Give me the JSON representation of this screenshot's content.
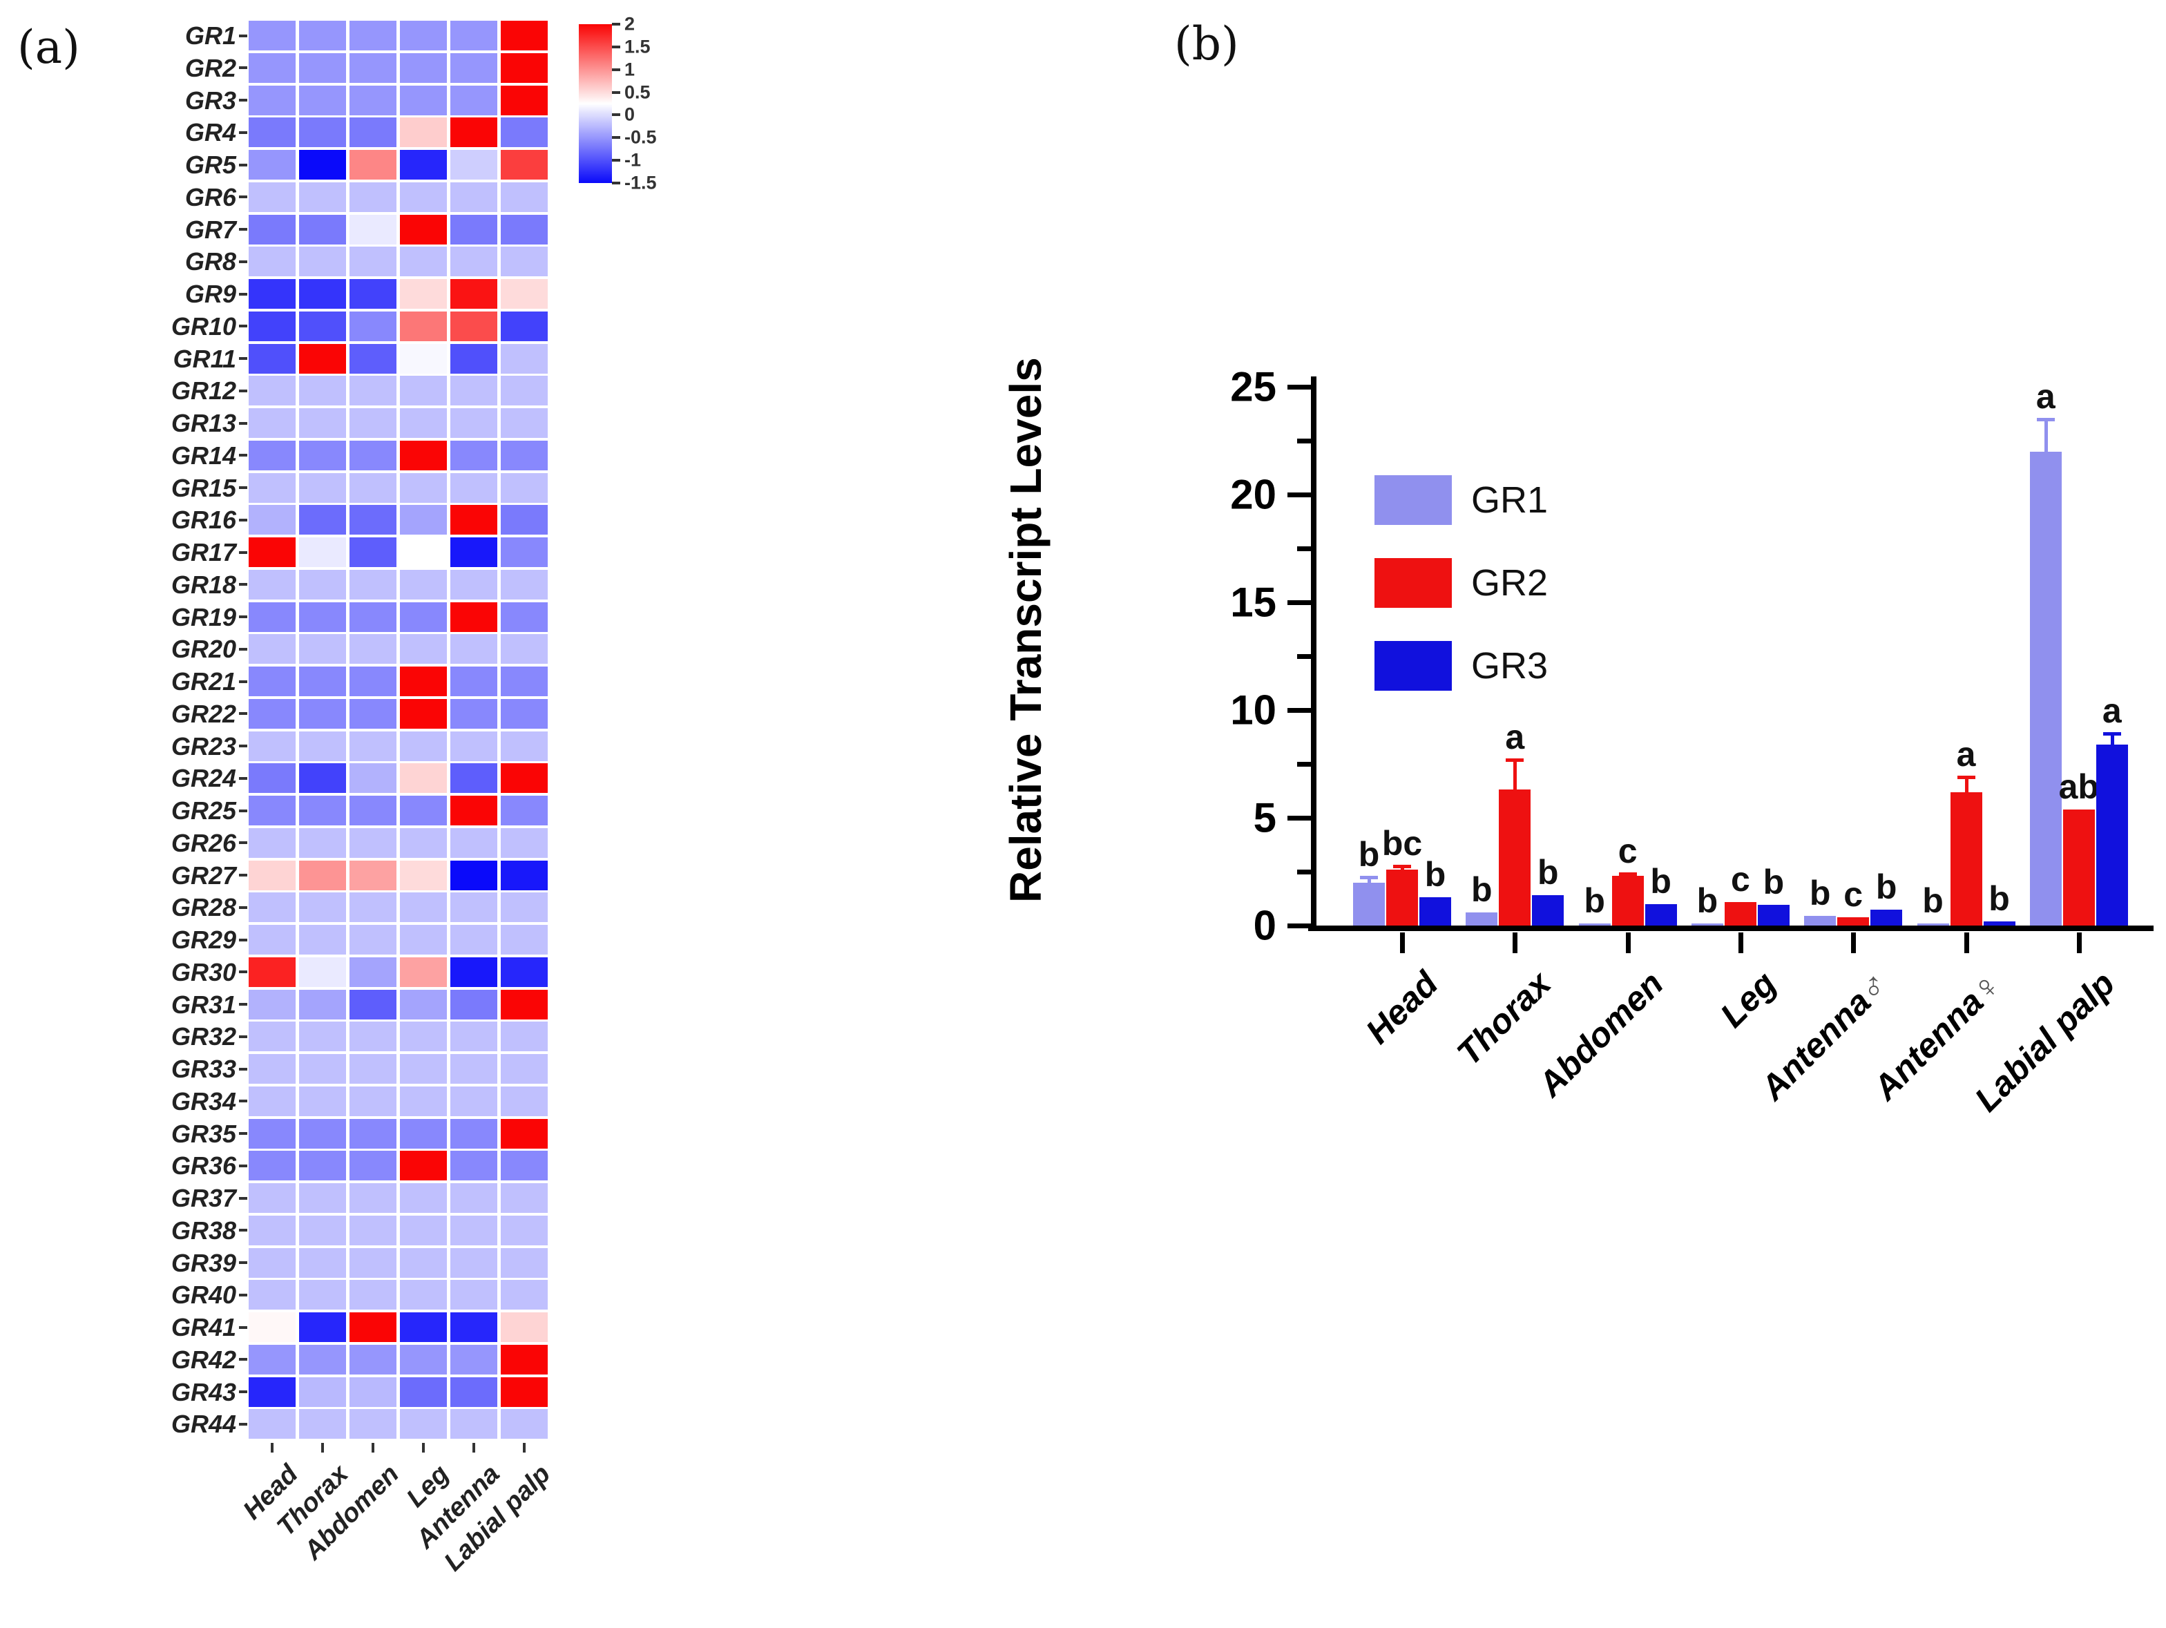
{
  "panels": {
    "a_label": "(a)",
    "b_label": "(b)"
  },
  "chart_data": [
    {
      "type": "heatmap",
      "panel": "(a)",
      "rows": [
        "GR1",
        "GR2",
        "GR3",
        "GR4",
        "GR5",
        "GR6",
        "GR7",
        "GR8",
        "GR9",
        "GR10",
        "GR11",
        "GR12",
        "GR13",
        "GR14",
        "GR15",
        "GR16",
        "GR17",
        "GR18",
        "GR19",
        "GR20",
        "GR21",
        "GR22",
        "GR23",
        "GR24",
        "GR25",
        "GR26",
        "GR27",
        "GR28",
        "GR29",
        "GR30",
        "GR31",
        "GR32",
        "GR33",
        "GR34",
        "GR35",
        "GR36",
        "GR37",
        "GR38",
        "GR39",
        "GR40",
        "GR41",
        "GR42",
        "GR43",
        "GR44"
      ],
      "columns": [
        "Head",
        "Thorax",
        "Abdomen",
        "Leg",
        "Antenna",
        "Labial palp"
      ],
      "values": [
        [
          -0.5,
          -0.5,
          -0.5,
          -0.5,
          -0.5,
          2
        ],
        [
          -0.5,
          -0.5,
          -0.5,
          -0.5,
          -0.5,
          2
        ],
        [
          -0.5,
          -0.5,
          -0.5,
          -0.5,
          -0.5,
          2
        ],
        [
          -0.7,
          -0.7,
          -0.7,
          0.6,
          2,
          -0.7
        ],
        [
          -0.5,
          -1.5,
          1.1,
          -1.3,
          -0.1,
          1.6
        ],
        [
          -0.2,
          -0.2,
          -0.2,
          -0.2,
          -0.2,
          -0.2
        ],
        [
          -0.7,
          -0.7,
          0.1,
          2,
          -0.7,
          -0.7
        ],
        [
          -0.2,
          -0.2,
          -0.2,
          -0.2,
          -0.2,
          -0.2
        ],
        [
          -1.2,
          -1.2,
          -1.1,
          0.5,
          1.9,
          0.5
        ],
        [
          -1.1,
          -1.0,
          -0.6,
          1.2,
          1.5,
          -1.1
        ],
        [
          -1.0,
          2,
          -0.9,
          0.2,
          -1.0,
          -0.2
        ],
        [
          -0.2,
          -0.2,
          -0.2,
          -0.2,
          -0.2,
          -0.2
        ],
        [
          -0.2,
          -0.2,
          -0.2,
          -0.2,
          -0.2,
          -0.2
        ],
        [
          -0.6,
          -0.6,
          -0.6,
          2,
          -0.6,
          -0.6
        ],
        [
          -0.2,
          -0.2,
          -0.2,
          -0.2,
          -0.2,
          -0.2
        ],
        [
          -0.3,
          -0.8,
          -0.8,
          -0.4,
          2,
          -0.7
        ],
        [
          2,
          0.1,
          -0.9,
          0.25,
          -1.4,
          -0.6
        ],
        [
          -0.2,
          -0.2,
          -0.2,
          -0.2,
          -0.2,
          -0.2
        ],
        [
          -0.6,
          -0.6,
          -0.6,
          -0.6,
          2,
          -0.6
        ],
        [
          -0.2,
          -0.2,
          -0.2,
          -0.2,
          -0.2,
          -0.2
        ],
        [
          -0.6,
          -0.6,
          -0.6,
          2,
          -0.6,
          -0.6
        ],
        [
          -0.6,
          -0.6,
          -0.6,
          2,
          -0.6,
          -0.6
        ],
        [
          -0.2,
          -0.2,
          -0.2,
          -0.2,
          -0.2,
          -0.2
        ],
        [
          -0.7,
          -1.1,
          -0.3,
          0.55,
          -0.9,
          2
        ],
        [
          -0.6,
          -0.6,
          -0.6,
          -0.6,
          2,
          -0.6
        ],
        [
          -0.2,
          -0.2,
          -0.2,
          -0.2,
          -0.2,
          -0.2
        ],
        [
          0.55,
          1.0,
          0.9,
          0.5,
          -1.5,
          -1.4
        ],
        [
          -0.2,
          -0.2,
          -0.2,
          -0.2,
          -0.2,
          -0.2
        ],
        [
          -0.2,
          -0.2,
          -0.2,
          -0.2,
          -0.2,
          -0.2
        ],
        [
          1.8,
          0.1,
          -0.4,
          0.9,
          -1.4,
          -1.3
        ],
        [
          -0.3,
          -0.4,
          -0.9,
          -0.4,
          -0.7,
          2
        ],
        [
          -0.2,
          -0.2,
          -0.2,
          -0.2,
          -0.2,
          -0.2
        ],
        [
          -0.2,
          -0.2,
          -0.2,
          -0.2,
          -0.2,
          -0.2
        ],
        [
          -0.2,
          -0.2,
          -0.2,
          -0.2,
          -0.2,
          -0.2
        ],
        [
          -0.6,
          -0.6,
          -0.6,
          -0.6,
          -0.6,
          2
        ],
        [
          -0.6,
          -0.6,
          -0.6,
          2,
          -0.6,
          -0.6
        ],
        [
          -0.2,
          -0.2,
          -0.2,
          -0.2,
          -0.2,
          -0.2
        ],
        [
          -0.2,
          -0.2,
          -0.2,
          -0.2,
          -0.2,
          -0.2
        ],
        [
          -0.2,
          -0.2,
          -0.2,
          -0.2,
          -0.2,
          -0.2
        ],
        [
          -0.2,
          -0.2,
          -0.2,
          -0.2,
          -0.2,
          -0.2
        ],
        [
          0.3,
          -1.3,
          2,
          -1.3,
          -1.3,
          0.55
        ],
        [
          -0.5,
          -0.5,
          -0.5,
          -0.5,
          -0.5,
          2
        ],
        [
          -1.3,
          -0.25,
          -0.25,
          -0.8,
          -0.8,
          2
        ],
        [
          -0.2,
          -0.2,
          -0.2,
          -0.2,
          -0.2,
          -0.2
        ]
      ],
      "colorscale": {
        "min": -1.5,
        "max": 2,
        "white_at": 0.25,
        "red": "#fa0505",
        "blue": "#0a0afa",
        "white": "#ffffff",
        "ticks": [
          "2",
          "1.5",
          "1",
          "0.5",
          "0",
          "-0.5",
          "-1",
          "-1.5"
        ]
      },
      "legend_position": "top-right"
    },
    {
      "type": "bar",
      "panel": "(b)",
      "categories": [
        "Head",
        "Thorax",
        "Abdomen",
        "Leg",
        "Antenna ♂",
        "Antenna ♀",
        "Labial palp"
      ],
      "series": [
        {
          "name": "GR1",
          "color": "#9090ee",
          "values": [
            2.0,
            0.6,
            0.1,
            0.1,
            0.45,
            0.1,
            22.0
          ],
          "errors": [
            0.25,
            0,
            0,
            0,
            0,
            0,
            1.5
          ],
          "letters": [
            "b",
            "b",
            "b",
            "b",
            "b",
            "b",
            "a"
          ]
        },
        {
          "name": "GR2",
          "color": "#ee1111",
          "values": [
            2.6,
            6.3,
            2.3,
            1.1,
            0.4,
            6.2,
            5.4
          ],
          "errors": [
            0.15,
            1.4,
            0.1,
            0,
            0,
            0.7,
            0
          ],
          "letters": [
            "bc",
            "a",
            "c",
            "c",
            "c",
            "a",
            "ab"
          ]
        },
        {
          "name": "GR3",
          "color": "#1111dd",
          "values": [
            1.3,
            1.4,
            1.0,
            0.95,
            0.75,
            0.2,
            8.4
          ],
          "errors": [
            0,
            0,
            0,
            0,
            0,
            0,
            0.5
          ],
          "letters": [
            "b",
            "b",
            "b",
            "b",
            "b",
            "b",
            "a"
          ]
        }
      ],
      "title": "",
      "xlabel": "",
      "ylabel": "Relative Transcript Levels",
      "ylim": [
        0,
        25
      ],
      "yticks": [
        0,
        5,
        10,
        15,
        20,
        25
      ],
      "yticks_minor": [
        2.5,
        7.5,
        12.5,
        17.5,
        22.5
      ],
      "grid": false,
      "legend_position": "upper-left-inside"
    }
  ]
}
